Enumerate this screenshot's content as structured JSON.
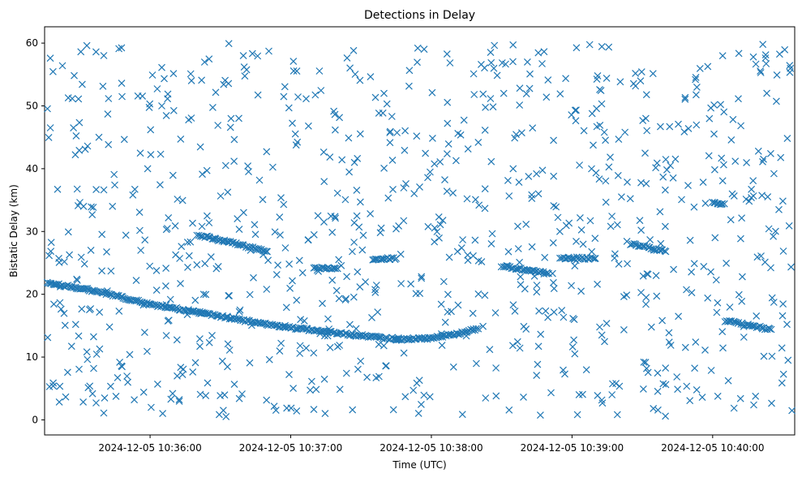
{
  "chart_data": {
    "type": "scatter",
    "title": "Detections in Delay",
    "xlabel": "Time (UTC)",
    "ylabel": "Bistatic Delay (km)",
    "marker": "x",
    "color": "#1f77b4",
    "grid": false,
    "x_axis": {
      "type": "time",
      "range": [
        "2024-12-05 10:35:15",
        "2024-12-05 10:40:35"
      ],
      "ticks": [
        "2024-12-05 10:36:00",
        "2024-12-05 10:37:00",
        "2024-12-05 10:38:00",
        "2024-12-05 10:39:00",
        "2024-12-05 10:40:00"
      ],
      "tick_labels": [
        "2024-12-05 10:36:00",
        "2024-12-05 10:37:00",
        "2024-12-05 10:38:00",
        "2024-12-05 10:39:00",
        "2024-12-05 10:40:00"
      ]
    },
    "y_axis": {
      "range": [
        -2.4,
        62.6
      ],
      "ticks": [
        0,
        10,
        20,
        30,
        40,
        50,
        60
      ],
      "tick_labels": [
        "0",
        "10",
        "20",
        "30",
        "40",
        "50",
        "60"
      ]
    },
    "tracks": [
      {
        "points": [
          [
            "2024-12-05 10:35:16",
            21.8
          ],
          [
            "2024-12-05 10:35:30",
            21.0
          ],
          [
            "2024-12-05 10:35:45",
            19.8
          ],
          [
            "2024-12-05 10:36:00",
            18.4
          ],
          [
            "2024-12-05 10:36:15",
            17.5
          ],
          [
            "2024-12-05 10:36:30",
            16.5
          ],
          [
            "2024-12-05 10:36:45",
            15.5
          ],
          [
            "2024-12-05 10:37:00",
            14.7
          ],
          [
            "2024-12-05 10:37:15",
            14.0
          ],
          [
            "2024-12-05 10:37:30",
            13.4
          ],
          [
            "2024-12-05 10:37:45",
            12.9
          ]
        ]
      },
      {
        "points": [
          [
            "2024-12-05 10:37:45",
            12.8
          ],
          [
            "2024-12-05 10:38:00",
            13.0
          ],
          [
            "2024-12-05 10:38:10",
            13.6
          ],
          [
            "2024-12-05 10:38:20",
            14.5
          ]
        ]
      },
      {
        "points": [
          [
            "2024-12-05 10:36:20",
            29.5
          ],
          [
            "2024-12-05 10:36:35",
            28.2
          ],
          [
            "2024-12-05 10:36:50",
            26.8
          ]
        ]
      },
      {
        "points": [
          [
            "2024-12-05 10:37:10",
            24.3
          ],
          [
            "2024-12-05 10:37:20",
            24.1
          ]
        ]
      },
      {
        "points": [
          [
            "2024-12-05 10:37:35",
            25.6
          ],
          [
            "2024-12-05 10:37:45",
            25.7
          ]
        ]
      },
      {
        "points": [
          [
            "2024-12-05 10:38:30",
            24.5
          ],
          [
            "2024-12-05 10:38:50",
            23.3
          ]
        ]
      },
      {
        "points": [
          [
            "2024-12-05 10:38:55",
            25.8
          ],
          [
            "2024-12-05 10:39:10",
            25.7
          ]
        ]
      },
      {
        "points": [
          [
            "2024-12-05 10:39:25",
            28.0
          ],
          [
            "2024-12-05 10:39:40",
            26.8
          ]
        ]
      },
      {
        "points": [
          [
            "2024-12-05 10:40:00",
            34.5
          ],
          [
            "2024-12-05 10:40:05",
            34.4
          ]
        ]
      },
      {
        "points": [
          [
            "2024-12-05 10:40:05",
            15.8
          ],
          [
            "2024-12-05 10:40:25",
            14.4
          ]
        ]
      }
    ],
    "clutter": {
      "count": 900,
      "range": [
        0.5,
        60.0
      ]
    },
    "total_markers_approx": 1450
  }
}
